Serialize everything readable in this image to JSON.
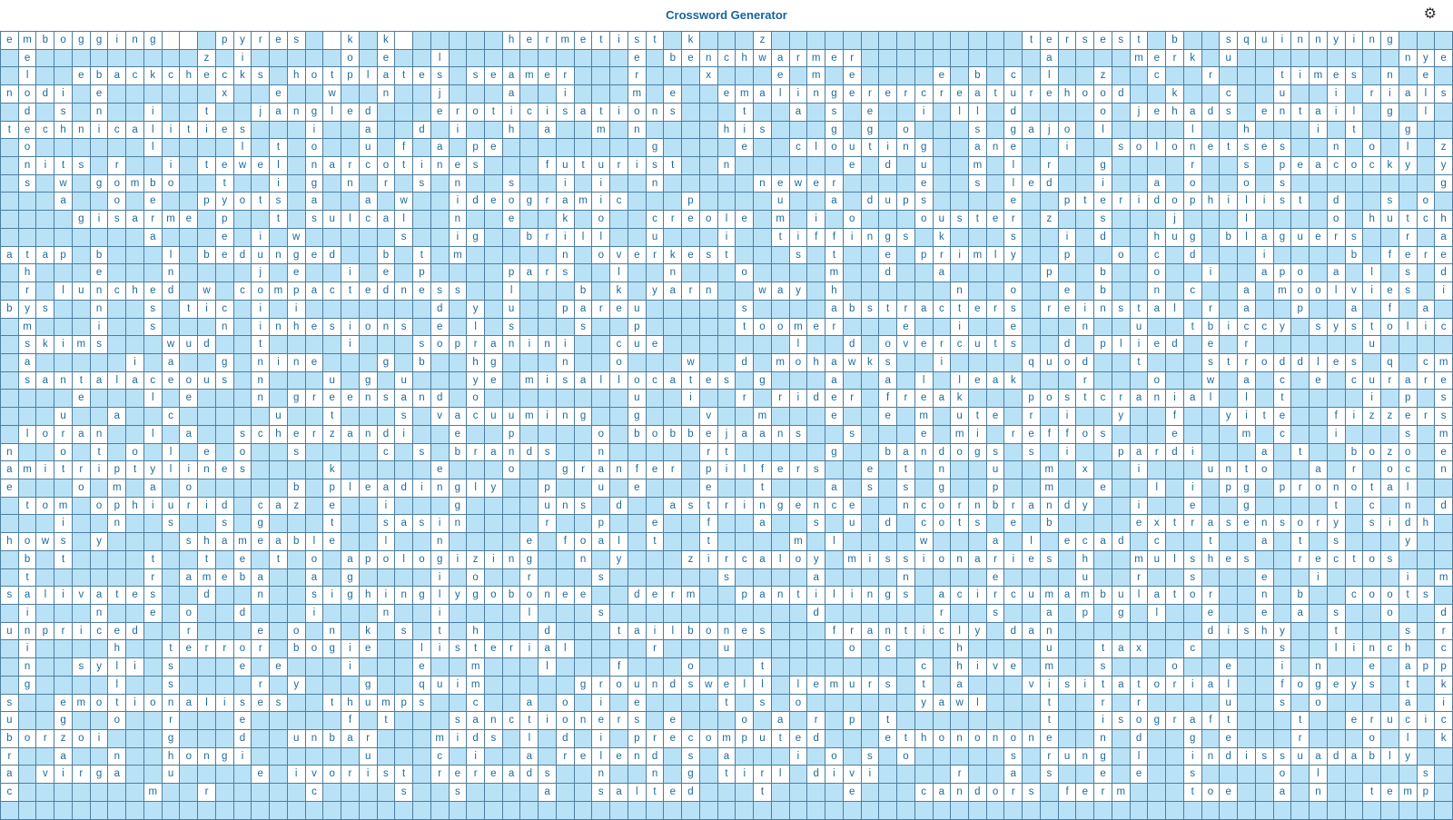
{
  "app": {
    "title": "Crossword Generator"
  },
  "header": {
    "gear_icon": "⚙"
  },
  "colors": {
    "empty_cell": "#b9e2f6",
    "filled_cell": "#ffffff",
    "grid_line": "#4e7ea0",
    "letter": "#1a6b9d",
    "title": "#15639e"
  },
  "grid": {
    "cols": 81,
    "rows": 44,
    "legend": "each string = one row; space = empty blue cell, underscore = blank white cell, letter = white cell with letter",
    "rows_data": [
      "embogging__ pyres _k k_     hermetist k   z              tersest b  squinnying   ",
      " e         z i     o e  l          e benchwarmer          a    merk u         nye",
      " l  ebackchecks hotplates seamer   r   x   e m e    e b c l  z  c  r   times n e ",
      "nodi e      x  e  w  n  j   a  i   m e  emalingerercreaturehood  k  c  u  i rials",
      " d s n  i  t  jangled   eroticisations   t  a s e  i ll d    o jehads entail g l ",
      "technicalities   i  a  d i  h a  m n    his   g g o   s gajo l    l  h   i t  g  ",
      " o      l    l t o  u f a pe        g    e  clouting  ane  i  solonetses  n o l z",
      " nits r  i tewel narcotines   futurist  n      e d u  m l r  g    r  s peacocky y",
      " s w gombo  t  i g n r s n  s  i i  n     newer    e  s led  i  a o  o s        g",
      "   a  o e  pyots a  a w  ideogramic   p    u  a dups    e  pteridophilist d  s o ",
      "    gisarme p  t sulcal  n  e  k o  creole m i o   ouster z  s   j   l    o hutch",
      "        a   e i w     s  ig  brill  u   i  tiffings k   s  i d  hug blaguers  r a",
      "atap b   l bedunged  b t m     n overkest   s t  e primly  p  o c d   i    b fere",
      " h   e   n    j e  i e p    pars  l  n   o    m  d  a     p  b  o  i  apo a l s d",
      " r lunched w compactedness  l   b k yarn  way h      n  o  e b  n c  a moolvies i",
      "bys  n  s tic i i       d y u  pareu     s    abstracters reinstal r a  p  a f a ",
      " m   i  s   n inhesions e l s   s  p     toomer   e  i  e   n  u  tbiccy systolic",
      " skims   wud  t    i   sopranini  cue       l  d overcuts  d plied e r      u    ",
      " a     i a  g nine   g b  hg   n  o   w  d mohawks  i    quod  t   stroddles q cm",
      " santalaceous n   u g u   ye misallocates g   a  a l leak   r   o  w a c e curare",
      "    e   l e   n greensand o        u  i  r rider freak   postcranial l t    i p s",
      "   u  a  c     u  t   s vacuuming  g   v  m   e  e m ute r i  y  f  yite  fizzers",
      " loran  l a  scherzandi  e  p    o bobbejaans  s   e mi reffos   e   m c  i   s m",
      "n  o t o l e o  s    c s brands  n     rt     g  bandogs s i  pardi   a t  bozo e",
      "amitriptylines    k     e   o  granfer pilfers  e t n  u  m x  i   unto  a r oc n",
      "e   o m a o     b pleadingly  p  u e   e  t   a s s g  p  m  e  l i pg pronotal  ",
      " tom ophiurid caz e  i   g    uns d  astringence  ncornbrandy  i  e  g    t c n d",
      "   i  n  s  s g   t  sasin    r  p  e  f  a  s u d cots e b    extrasensory sidh ",
      "hows y    shameable  l  n    e foal t  t    m l    w   a l ecad c  t  a t s   y  ",
      " b t    t  t e t o apologizing  n y   zircaloy missionaries h  mulshes  rectos   ",
      " t      r ameba  a g    i o  r   s      s    a    n    e    u  r  s   e  i    i m",
      "salivates  d  n  sighinglygobonee  derm  pantilings acircumambulator  n b  coots ",
      " i   n  e o  d   i   n  i    l   s           d      r  s  a p g l  e  e a s  o  d",
      "unpriced  r   e o n k s t h   d   tailbones   franticly dan        dishy  t   s r",
      " i    h  terror bogie  listerial    r   u      o c   h    u  tax  c    s  linch c",
      " n  syli s   e e   i   e  m   l   f   o   t        c hive m  s   o  e  i n  e app",
      " g    l  s    r y   g  quim     groundswell lemurs t a   visitatorial  fogeys t k",
      "s  emotionalises  thumps  c  a o i e    t s o      yawl   t  r r    u  s o    a i",
      "u  g  o  r   e     f t   sanctioners e   o a r p t        t  isograft   t  erucic",
      "borzoi   g   d  unbar   mids l d i precomputed   ethononone  n d  g e   r   o l k",
      "r  a  n  hongi      u   c i  a relend s a   i o s o     s rung l  indissuadably  ",
      "a virga  u    e ivorist rereads  n  n g tirl divi    r  a s  e e  s    o l     s ",
      "c       m  r     c    s  s    a  salted   t    e   candors ferm   toe  a n  temp ",
      ""
    ]
  }
}
